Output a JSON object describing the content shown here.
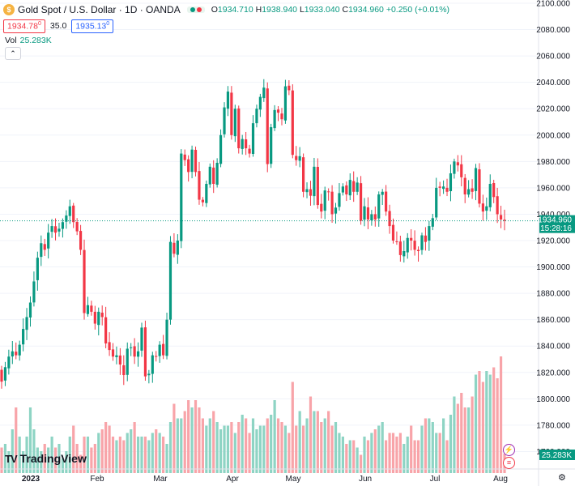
{
  "header": {
    "symbol_icon": "gold-coin-icon",
    "title": "Gold Spot / U.S. Dollar · 1D · OANDA",
    "ohlc": {
      "o_label": "O",
      "o": "1934.710",
      "h_label": "H",
      "h": "1938.940",
      "l_label": "L",
      "l": "1933.040",
      "c_label": "C",
      "c": "1934.960",
      "change": "+0.250 (+0.01%)"
    },
    "sell_price": "1934.78",
    "sell_sup": "0",
    "spread": "35.0",
    "buy_price": "1935.13",
    "buy_sup": "0",
    "volume_label": "Vol",
    "volume_value": "25.283K"
  },
  "branding": {
    "logo_mark": "TV",
    "logo_text": "TradingView"
  },
  "colors": {
    "up": "#089981",
    "down": "#f23645",
    "up_vol": "#8ed4c4",
    "down_vol": "#f8a4a9",
    "grid": "#f0f3fa",
    "text": "#131722"
  },
  "chart_data": {
    "type": "candlestick",
    "title": "Gold Spot / U.S. Dollar · 1D · OANDA",
    "y_axis": {
      "ticks": [
        "2100.000",
        "2080.000",
        "2060.000",
        "2040.000",
        "2020.000",
        "2000.000",
        "1980.000",
        "1960.000",
        "1940.000",
        "1920.000",
        "1900.000",
        "1880.000",
        "1860.000",
        "1840.000",
        "1820.000",
        "1800.000",
        "1780.000",
        "1760.000"
      ],
      "ylim": [
        1754,
        2102
      ]
    },
    "x_axis": {
      "labels": [
        "2023",
        "Feb",
        "Mar",
        "Apr",
        "May",
        "Jun",
        "Jul",
        "Aug"
      ]
    },
    "last_price": {
      "value": 1934.96,
      "label": "1934.960",
      "countdown": "15:28:16"
    },
    "volume_last": "25.283K",
    "closes": [
      1813,
      1824,
      1832,
      1836,
      1833,
      1841,
      1853,
      1862,
      1873,
      1889,
      1907,
      1918,
      1913,
      1926,
      1931,
      1926,
      1929,
      1934,
      1939,
      1946,
      1934,
      1927,
      1913,
      1865,
      1871,
      1866,
      1857,
      1866,
      1862,
      1842,
      1837,
      1832,
      1833,
      1826,
      1818,
      1838,
      1839,
      1832,
      1836,
      1854,
      1817,
      1819,
      1833,
      1832,
      1841,
      1833,
      1860,
      1919,
      1910,
      1920,
      1986,
      1981,
      1972,
      1989,
      1972,
      1951,
      1949,
      1963,
      1976,
      1963,
      1979,
      2000,
      2021,
      2033,
      2000,
      2020,
      1990,
      1997,
      1990,
      1986,
      2009,
      2020,
      2029,
      2036,
      1978,
      2006,
      2019,
      2017,
      2012,
      2037,
      2034,
      1985,
      1981,
      1984,
      1957,
      1959,
      1954,
      1976,
      1947,
      1942,
      1958,
      1957,
      1940,
      1945,
      1956,
      1961,
      1955,
      1966,
      1957,
      1964,
      1935,
      1946,
      1936,
      1940,
      1936,
      1955,
      1957,
      1942,
      1931,
      1920,
      1919,
      1909,
      1912,
      1922,
      1920,
      1913,
      1912,
      1924,
      1919,
      1931,
      1937,
      1960,
      1960,
      1961,
      1957,
      1971,
      1980,
      1977,
      1968,
      1955,
      1959,
      1957,
      1975,
      1948,
      1942,
      1946,
      1963,
      1953,
      1940,
      1936,
      1935
    ],
    "volume_k": [
      27,
      28,
      26,
      32,
      38,
      30,
      26,
      30,
      38,
      32,
      27,
      26,
      28,
      27,
      30,
      27,
      28,
      24,
      26,
      30,
      33,
      28,
      25,
      30,
      30,
      27,
      28,
      31,
      32,
      34,
      33,
      30,
      29,
      30,
      29,
      31,
      32,
      34,
      30,
      30,
      30,
      29,
      31,
      32,
      31,
      30,
      28,
      34,
      39,
      35,
      35,
      37,
      40,
      38,
      40,
      38,
      35,
      33,
      35,
      37,
      34,
      32,
      33,
      33,
      34,
      31,
      34,
      36,
      35,
      31,
      35,
      32,
      33,
      33,
      35,
      36,
      40,
      35,
      34,
      33,
      31,
      45,
      33,
      37,
      33,
      35,
      41,
      37,
      37,
      34,
      35,
      37,
      33,
      34,
      31,
      30,
      28,
      29,
      29,
      27,
      25,
      30,
      29,
      31,
      32,
      33,
      34,
      29,
      31,
      31,
      30,
      31,
      28,
      30,
      33,
      29,
      29,
      33,
      35,
      35,
      34,
      31,
      31,
      35,
      29,
      36,
      41,
      39,
      42,
      38,
      38,
      41,
      47,
      48,
      45,
      48,
      47,
      49,
      46,
      52,
      25.3
    ]
  }
}
